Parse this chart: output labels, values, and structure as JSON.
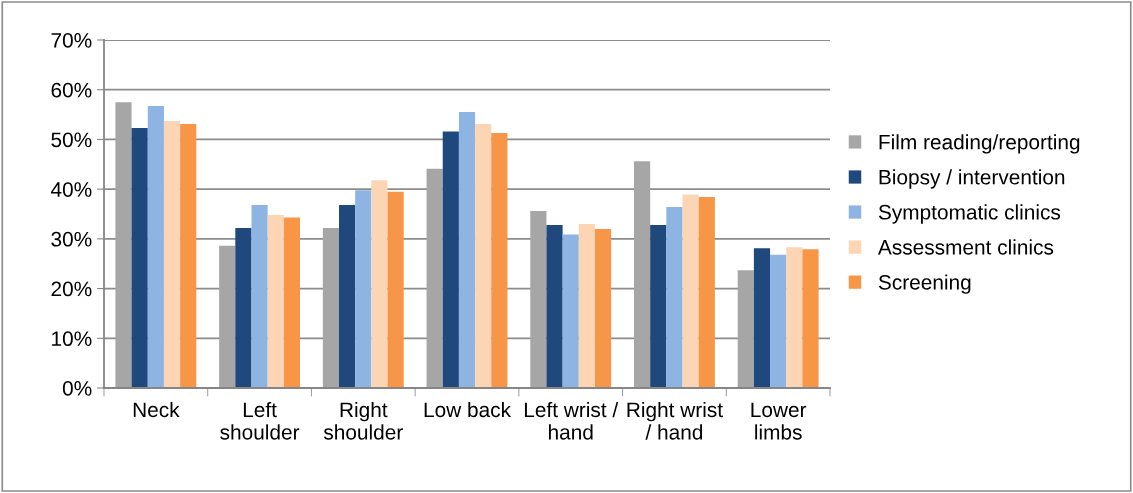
{
  "chart_data": {
    "type": "bar",
    "categories": [
      "Neck",
      "Left\nshoulder",
      "Right\nshoulder",
      "Low back",
      "Left wrist /\nhand",
      "Right wrist\n/ hand",
      "Lower\nlimbs"
    ],
    "series": [
      {
        "name": "Film reading/reporting",
        "color": "#a6a6a6",
        "values": [
          57.5,
          28.6,
          32.2,
          44.1,
          35.6,
          45.6,
          23.7
        ]
      },
      {
        "name": "Biopsy / intervention",
        "color": "#1f497d",
        "values": [
          52.3,
          32.2,
          36.8,
          51.6,
          32.8,
          32.8,
          28.1
        ]
      },
      {
        "name": "Symptomatic clinics",
        "color": "#8eb4e3",
        "values": [
          56.7,
          36.8,
          39.8,
          55.5,
          30.9,
          36.4,
          26.8
        ]
      },
      {
        "name": "Assessment clinics",
        "color": "#fcd5b5",
        "values": [
          53.7,
          34.8,
          41.8,
          53.1,
          33.0,
          38.9,
          28.3
        ]
      },
      {
        "name": "Screening",
        "color": "#f79646",
        "values": [
          53.1,
          34.3,
          39.5,
          51.3,
          32.0,
          38.4,
          27.9
        ]
      }
    ],
    "ylim": [
      0,
      70
    ],
    "yticks": [
      {
        "value": 0,
        "label": "0%"
      },
      {
        "value": 10,
        "label": "10%"
      },
      {
        "value": 20,
        "label": "20%"
      },
      {
        "value": 30,
        "label": "30%"
      },
      {
        "value": 40,
        "label": "40%"
      },
      {
        "value": 50,
        "label": "50%"
      },
      {
        "value": 60,
        "label": "60%"
      },
      {
        "value": 70,
        "label": "70%"
      }
    ],
    "grid": "y",
    "legend": "right"
  }
}
